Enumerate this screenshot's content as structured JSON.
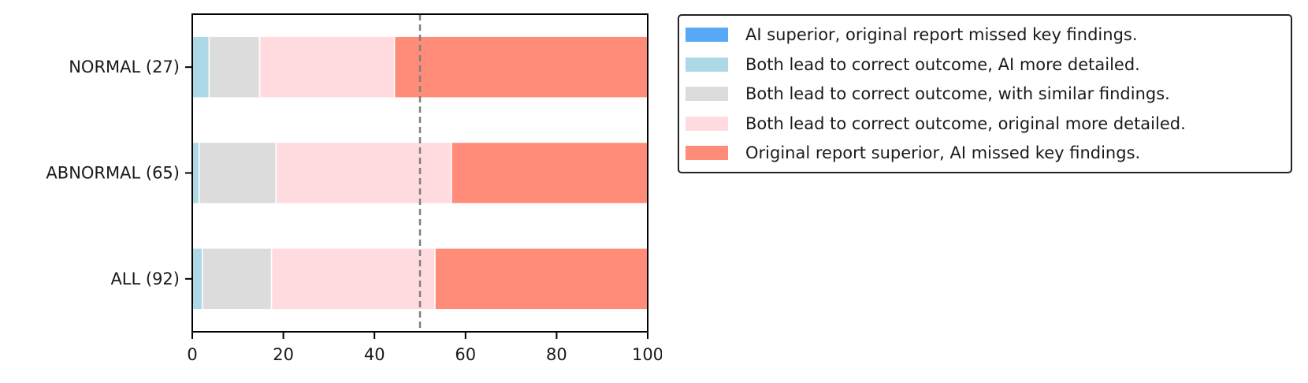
{
  "chart_data": {
    "type": "bar",
    "orientation": "horizontal",
    "stacked": true,
    "categories": [
      "NORMAL (27)",
      "ABNORMAL (65)",
      "ALL (92)"
    ],
    "series": [
      {
        "name": "AI superior, original report missed key findings.",
        "color": "#58a9f5",
        "values": [
          0,
          0,
          0
        ]
      },
      {
        "name": "Both lead to correct outcome, AI more detailed.",
        "color": "#add8e6",
        "values": [
          3.7,
          1.5,
          2.2
        ]
      },
      {
        "name": "Both lead to correct outcome, with similar findings.",
        "color": "#dcdcdc",
        "values": [
          11.1,
          16.9,
          15.2
        ]
      },
      {
        "name": "Both lead to correct outcome, original more detailed.",
        "color": "#ffdbe0",
        "values": [
          29.6,
          38.5,
          35.9
        ]
      },
      {
        "name": "Original report superior, AI missed key findings.",
        "color": "#ff8c78",
        "values": [
          55.6,
          43.1,
          46.7
        ]
      }
    ],
    "xlim": [
      0,
      100
    ],
    "xticks": [
      "0",
      "20",
      "40",
      "60",
      "80",
      "100"
    ],
    "reference_line": {
      "x": 50,
      "style": "dashed",
      "color": "#808080"
    },
    "xlabel": "",
    "ylabel": "",
    "title": "",
    "grid": false,
    "legend_position": "outside-right-top"
  }
}
